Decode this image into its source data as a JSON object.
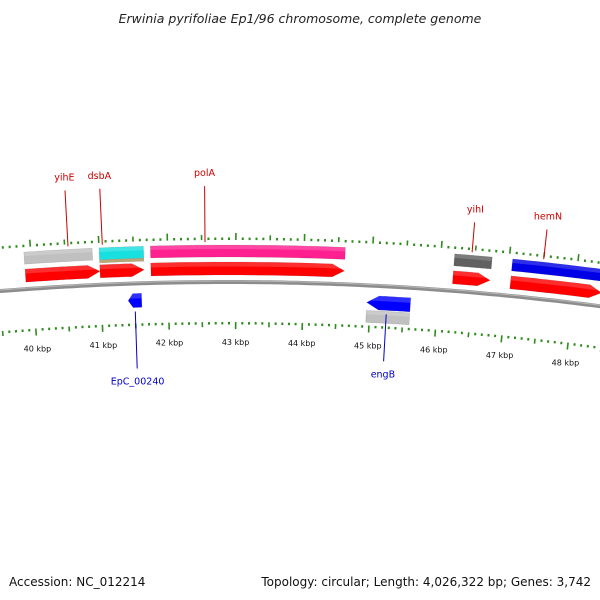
{
  "title": "Erwinia pyrifoliae Ep1/96 chromosome, complete genome",
  "footer": {
    "accession": "Accession: NC_012214",
    "summary": "Topology: circular; Length: 4,026,322 bp; Genes: 3,742"
  },
  "colors": {
    "backbone": "#8c8c8c",
    "tick": "#2e8b1e",
    "forward_label": "#cc0000",
    "reverse_label": "#0000cc"
  },
  "ticks": [
    {
      "kbp": 40,
      "label": "40 kbp"
    },
    {
      "kbp": 41,
      "label": "41 kbp"
    },
    {
      "kbp": 42,
      "label": "42 kbp"
    },
    {
      "kbp": 43,
      "label": "43 kbp"
    },
    {
      "kbp": 44,
      "label": "44 kbp"
    },
    {
      "kbp": 45,
      "label": "45 kbp"
    },
    {
      "kbp": 46,
      "label": "46 kbp"
    },
    {
      "kbp": 47,
      "label": "47 kbp"
    },
    {
      "kbp": 48,
      "label": "48 kbp"
    }
  ],
  "features": [
    {
      "name": "yihE-gene",
      "strand": "+",
      "kind": "gene",
      "start_kbp": 39.9,
      "end_kbp": 41.0,
      "color": "#ff0000"
    },
    {
      "name": "yihE-cds",
      "strand": "+",
      "kind": "cds",
      "start_kbp": 39.9,
      "end_kbp": 40.9,
      "color": "#c0c0c0"
    },
    {
      "name": "dsbA-gene",
      "strand": "+",
      "kind": "gene",
      "start_kbp": 41.0,
      "end_kbp": 41.65,
      "color": "#ff0000"
    },
    {
      "name": "dsbA-cds",
      "strand": "+",
      "kind": "cds",
      "start_kbp": 41.0,
      "end_kbp": 41.65,
      "color": "#19e0e0"
    },
    {
      "name": "dsbA-cds2",
      "strand": "+",
      "kind": "cds2",
      "start_kbp": 41.0,
      "end_kbp": 41.65,
      "color": "#b8a878"
    },
    {
      "name": "polA-gene",
      "strand": "+",
      "kind": "gene",
      "start_kbp": 41.75,
      "end_kbp": 44.6,
      "color": "#ff0000"
    },
    {
      "name": "polA-cds",
      "strand": "+",
      "kind": "cds",
      "start_kbp": 41.75,
      "end_kbp": 44.6,
      "color": "#ff1f8f"
    },
    {
      "name": "yihI-gene",
      "strand": "+",
      "kind": "gene",
      "start_kbp": 46.2,
      "end_kbp": 46.75,
      "color": "#ff0000"
    },
    {
      "name": "yihI-cds",
      "strand": "+",
      "kind": "cds",
      "start_kbp": 46.2,
      "end_kbp": 46.75,
      "color": "#606060"
    },
    {
      "name": "hemN-gene",
      "strand": "+",
      "kind": "gene",
      "start_kbp": 47.05,
      "end_kbp": 48.4,
      "color": "#ff0000"
    },
    {
      "name": "hemN-cds",
      "strand": "+",
      "kind": "cds",
      "start_kbp": 47.05,
      "end_kbp": 48.4,
      "color": "#0000e6"
    },
    {
      "name": "EpC_00240-gene",
      "strand": "-",
      "kind": "gene",
      "start_kbp": 41.4,
      "end_kbp": 41.6,
      "color": "#0000ff"
    },
    {
      "name": "engB-gene",
      "strand": "-",
      "kind": "gene",
      "start_kbp": 44.95,
      "end_kbp": 45.6,
      "color": "#0000ff"
    },
    {
      "name": "engB-cds",
      "strand": "-",
      "kind": "cds",
      "start_kbp": 44.95,
      "end_kbp": 45.6,
      "color": "#c0c0c0"
    },
    {
      "name": "next-gene",
      "strand": "-",
      "kind": "gene",
      "start_kbp": 48.6,
      "end_kbp": 49.0,
      "color": "#0000ff"
    },
    {
      "name": "next-cds",
      "strand": "-",
      "kind": "cds",
      "start_kbp": 48.6,
      "end_kbp": 49.0,
      "color": "#2ecc2e"
    }
  ],
  "labels": [
    {
      "text": "yihE",
      "strand": "+",
      "kbp": 40.55,
      "level": 1
    },
    {
      "text": "dsbA",
      "strand": "+",
      "kbp": 41.05,
      "level": 1
    },
    {
      "text": "polA",
      "strand": "+",
      "kbp": 42.55,
      "level": 1
    },
    {
      "text": "yihI",
      "strand": "+",
      "kbp": 46.45,
      "level": 0
    },
    {
      "text": "hemN",
      "strand": "+",
      "kbp": 47.5,
      "level": 0
    },
    {
      "text": "EpC_00240",
      "strand": "-",
      "kbp": 41.5,
      "level": 1
    },
    {
      "text": "engB",
      "strand": "-",
      "kbp": 45.25,
      "level": 0
    }
  ]
}
